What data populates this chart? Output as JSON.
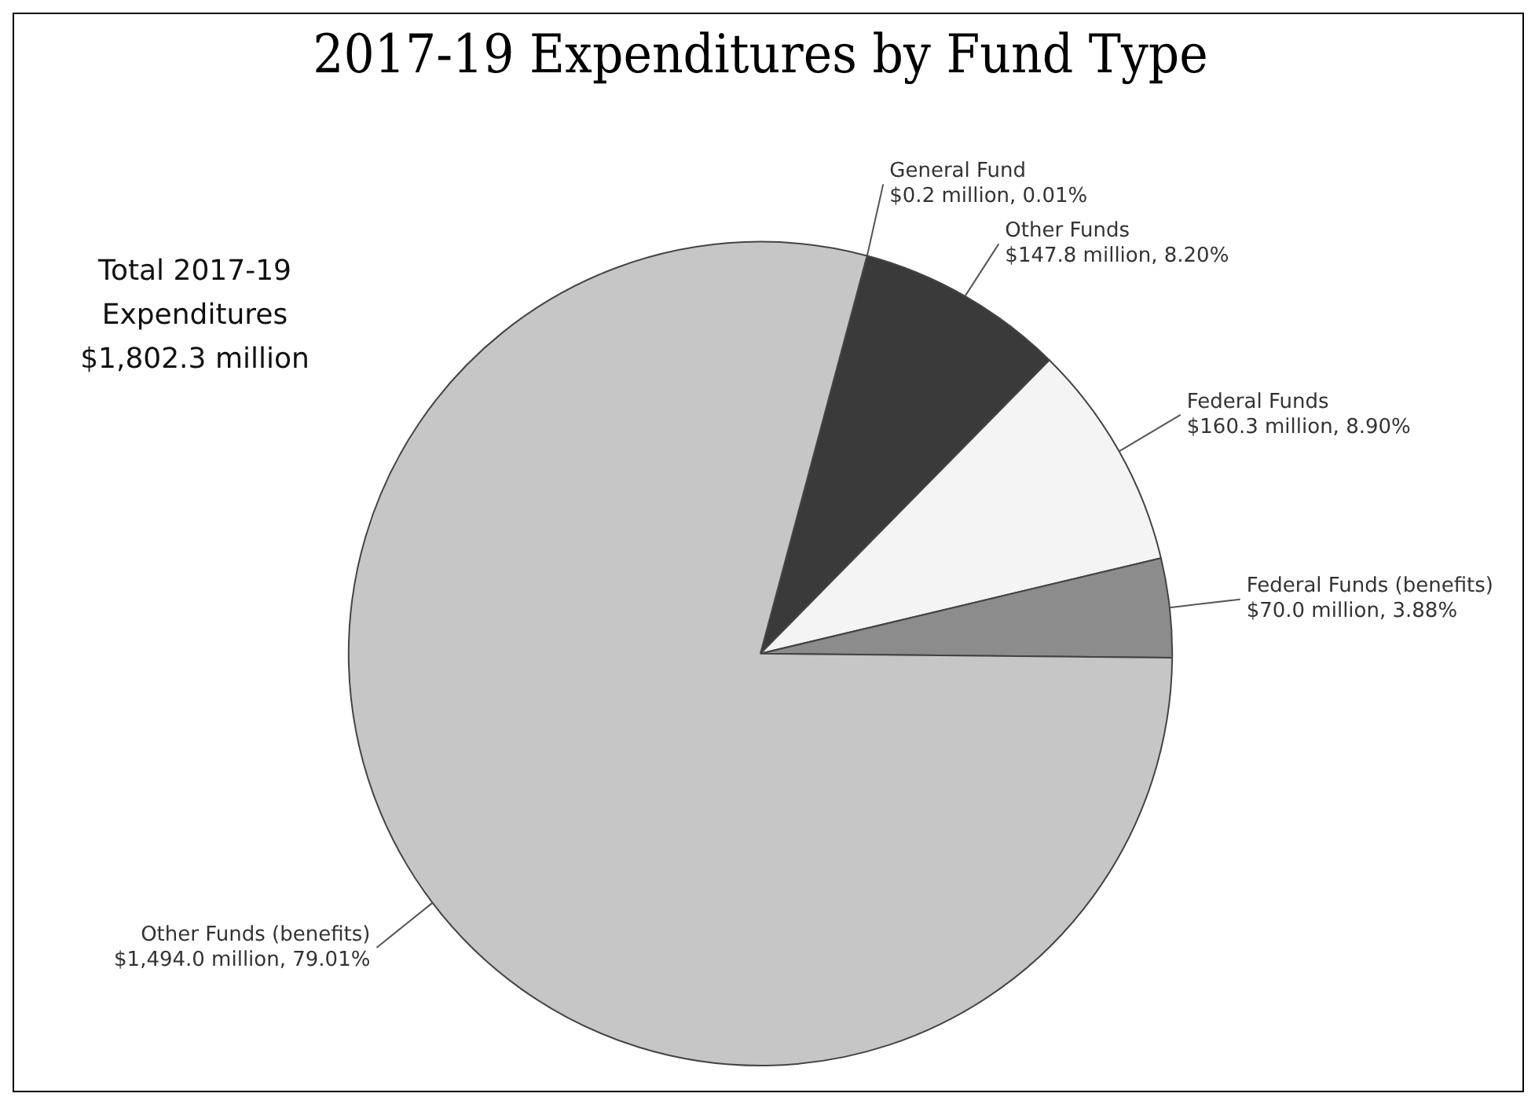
{
  "chart_data": {
    "type": "pie",
    "title": "2017-19 Expenditures by Fund Type",
    "categories": [
      "General Fund",
      "Other Funds",
      "Federal Funds",
      "Federal Funds (benefits)",
      "Other Funds (benefits)"
    ],
    "values": [
      0.01,
      8.2,
      8.9,
      3.88,
      79.01
    ],
    "value_labels": [
      "$0.2 million, 0.01%",
      "$147.8 million, 8.20%",
      "$160.3 million, 8.90%",
      "$70.0 million, 3.88%",
      "$1,494.0 million, 79.01%"
    ],
    "colors": [
      "#2e2e2e",
      "#3a3a3a",
      "#f4f4f4",
      "#8c8c8c",
      "#c6c6c6"
    ],
    "annotations": [
      "Total 2017-19 Expenditures $1,802.3 million"
    ],
    "legend": false
  }
}
